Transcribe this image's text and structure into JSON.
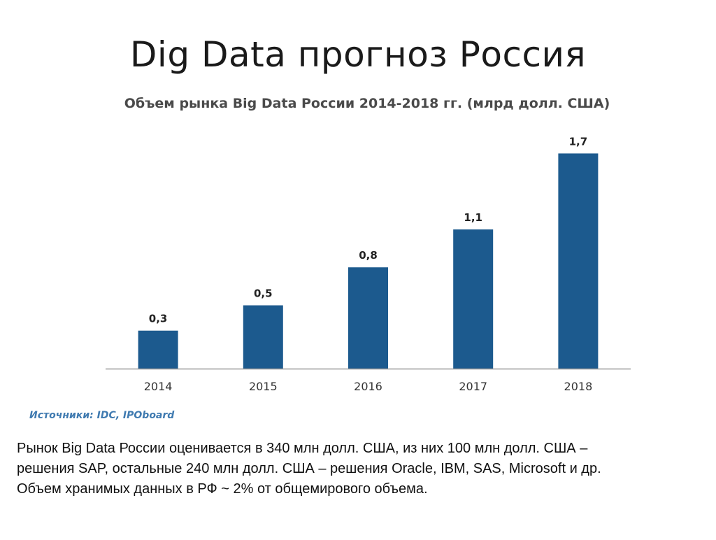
{
  "slide": {
    "title": "Dig Data прогноз Россия",
    "sources": "Источники: IDC, IPOboard",
    "body_lines": [
      "Рынок Big Data России оценивается в 340 млн долл. США, из них 100 млн долл. США –",
      "решения SAP, остальные 240 млн долл. США – решения Oracle, IBM, SAS, Microsoft и др.",
      "Объем хранимых данных в РФ ~ 2% от общемирового объема."
    ]
  },
  "chart_data": {
    "type": "bar",
    "title": "Объем рынка Big Data России 2014-2018 гг. (млрд долл. США)",
    "categories": [
      "2014",
      "2015",
      "2016",
      "2017",
      "2018"
    ],
    "values": [
      0.3,
      0.5,
      0.8,
      1.1,
      1.7
    ],
    "value_labels": [
      "0,3",
      "0,5",
      "0,8",
      "1,1",
      "1,7"
    ],
    "xlabel": "",
    "ylabel": "",
    "ylim": [
      0,
      2.0
    ],
    "grid": false,
    "legend": "none",
    "colors": {
      "bar": "#1c5a8e",
      "axis": "#9a9a9a",
      "tick_label": "#333333",
      "data_label": "#222222"
    }
  }
}
